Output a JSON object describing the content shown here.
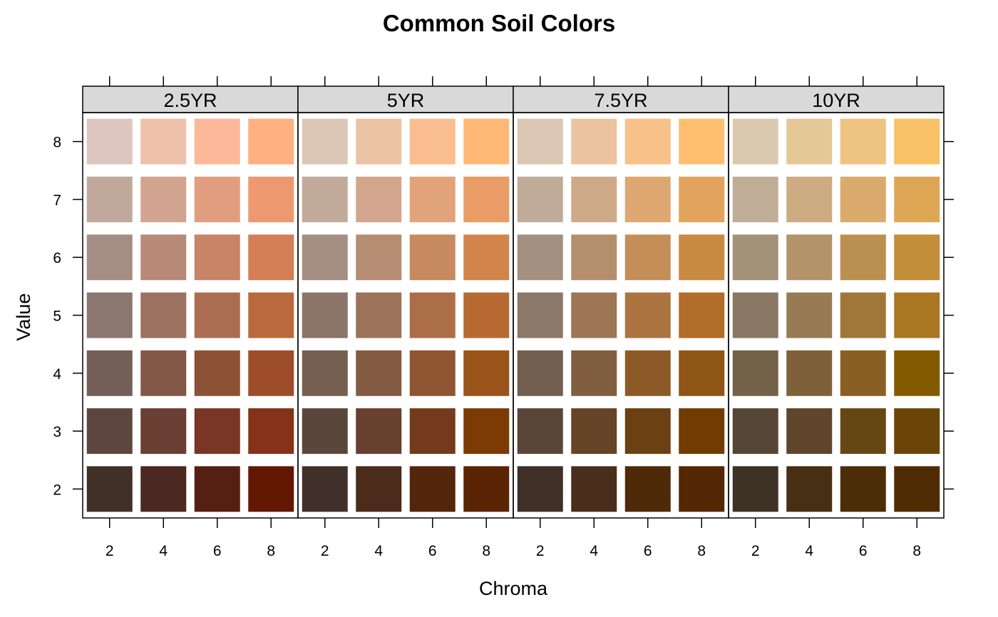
{
  "chart_data": {
    "type": "heatmap",
    "title": "Common Soil Colors",
    "xlabel": "Chroma",
    "ylabel": "Value",
    "x_ticks": [
      2,
      4,
      6,
      8
    ],
    "y_ticks": [
      2,
      3,
      4,
      5,
      6,
      7,
      8
    ],
    "xlim": [
      1,
      9
    ],
    "ylim": [
      1.5,
      8.5
    ],
    "grid": false,
    "strip_color": "#d9d9d9",
    "panels": [
      {
        "hue": "2.5YR",
        "colors": {
          "8": [
            "#dcc6bf",
            "#edc1aa",
            "#fdb89a",
            "#ffb080"
          ],
          "7": [
            "#c0a89c",
            "#d1a48f",
            "#e09e7f",
            "#ee9870"
          ],
          "6": [
            "#a48d84",
            "#b78977",
            "#c88467",
            "#d37e55"
          ],
          "5": [
            "#8c7670",
            "#9d7160",
            "#ab6d52",
            "#ba683e"
          ],
          "4": [
            "#735f57",
            "#835849",
            "#8c5236",
            "#9d4d2a"
          ],
          "3": [
            "#5c463f",
            "#693e33",
            "#793624",
            "#853218"
          ],
          "2": [
            "#403028",
            "#4b2821",
            "#551f13",
            "#621800"
          ]
        }
      },
      {
        "hue": "5YR",
        "colors": {
          "8": [
            "#dcc7b7",
            "#ebc3a5",
            "#f9bd8f",
            "#ffb876"
          ],
          "7": [
            "#c1aa9a",
            "#d1a68d",
            "#e0a37a",
            "#e99c65"
          ],
          "6": [
            "#a58f82",
            "#b68c72",
            "#c68a5e",
            "#d1854a"
          ],
          "5": [
            "#8b7568",
            "#9c735a",
            "#ac6e47",
            "#b66a31"
          ],
          "4": [
            "#745f51",
            "#835a42",
            "#8d5630",
            "#9a5419"
          ],
          "3": [
            "#5a473b",
            "#674030",
            "#733b1c",
            "#7c3b05"
          ],
          "2": [
            "#40302b",
            "#4b2b19",
            "#53260c",
            "#5b2404"
          ]
        }
      },
      {
        "hue": "7.5YR",
        "colors": {
          "8": [
            "#dbc7b3",
            "#ebc39f",
            "#f8c18a",
            "#ffbe70"
          ],
          "7": [
            "#c0ab98",
            "#cea987",
            "#dda772",
            "#e2a35c"
          ],
          "6": [
            "#a39080",
            "#b38f6e",
            "#c48e58",
            "#c88941"
          ],
          "5": [
            "#8c7868",
            "#9c7655",
            "#ac7440",
            "#b06e2a"
          ],
          "4": [
            "#735f50",
            "#815e40",
            "#8d5a27",
            "#8e5514"
          ],
          "3": [
            "#5a4638",
            "#664428",
            "#6b4012",
            "#703c02"
          ],
          "2": [
            "#3f3027",
            "#4a2d1a",
            "#4e2a08",
            "#552805"
          ]
        }
      },
      {
        "hue": "10YR",
        "colors": {
          "8": [
            "#dac9b0",
            "#e4c898",
            "#efc380",
            "#f8c167"
          ],
          "7": [
            "#c0ad97",
            "#cdac81",
            "#d9aa6b",
            "#dda654"
          ],
          "6": [
            "#a39279",
            "#b2936a",
            "#bb8f52",
            "#c38e3a"
          ],
          "5": [
            "#897863",
            "#977b53",
            "#a07739",
            "#a97722"
          ],
          "4": [
            "#736149",
            "#7f6139",
            "#8a5f23",
            "#835a00"
          ],
          "3": [
            "#564637",
            "#5f4529",
            "#664613",
            "#6a4507"
          ],
          "2": [
            "#3e3125",
            "#472f13",
            "#4b2e07",
            "#502c05"
          ]
        }
      }
    ]
  }
}
